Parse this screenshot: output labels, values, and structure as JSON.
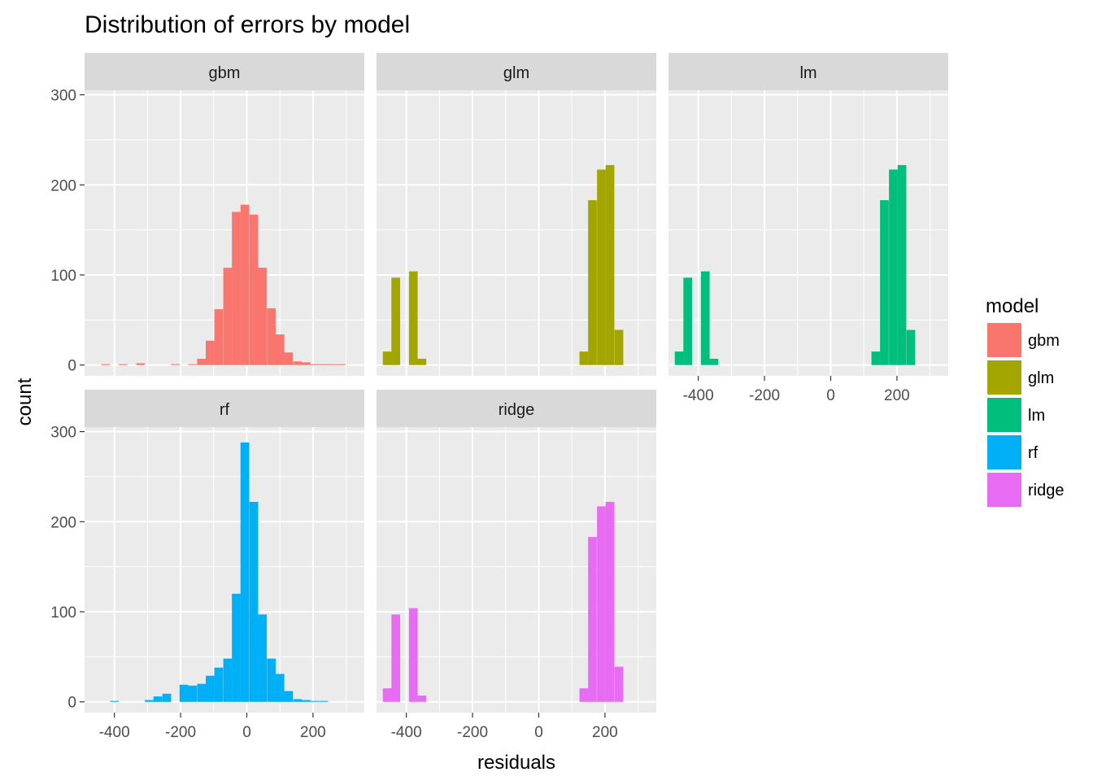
{
  "chart_data": {
    "type": "bar",
    "subtype": "faceted-histogram",
    "title": "Distribution of errors by model",
    "xlabel": "residuals",
    "ylabel": "count",
    "xlim": [
      -490,
      355
    ],
    "ylim": [
      -12,
      305
    ],
    "bin_width": 26.3,
    "x_ticks": [
      -400,
      -200,
      0,
      200
    ],
    "y_ticks": [
      0,
      100,
      200,
      300
    ],
    "grid": true,
    "legend": {
      "title": "model",
      "position": "right",
      "entries": [
        {
          "label": "gbm",
          "color": "#F8766D"
        },
        {
          "label": "glm",
          "color": "#A3A500"
        },
        {
          "label": "lm",
          "color": "#00BF7D"
        },
        {
          "label": "rf",
          "color": "#00B0F6"
        },
        {
          "label": "ridge",
          "color": "#E76BF3"
        }
      ]
    },
    "panels": [
      {
        "label": "gbm",
        "color": "#F8766D",
        "show_x_axis": false,
        "bins": [
          {
            "x0": -440,
            "count": 1
          },
          {
            "x0": -387,
            "count": 1
          },
          {
            "x0": -334,
            "count": 2
          },
          {
            "x0": -229,
            "count": 1
          },
          {
            "x0": -177,
            "count": 1
          },
          {
            "x0": -150,
            "count": 7
          },
          {
            "x0": -124,
            "count": 27
          },
          {
            "x0": -98,
            "count": 62
          },
          {
            "x0": -71,
            "count": 108
          },
          {
            "x0": -45,
            "count": 170
          },
          {
            "x0": -19,
            "count": 178
          },
          {
            "x0": 8,
            "count": 167
          },
          {
            "x0": 34,
            "count": 108
          },
          {
            "x0": 61,
            "count": 63
          },
          {
            "x0": 87,
            "count": 34
          },
          {
            "x0": 113,
            "count": 14
          },
          {
            "x0": 140,
            "count": 4
          },
          {
            "x0": 166,
            "count": 3
          },
          {
            "x0": 192,
            "count": 1
          },
          {
            "x0": 219,
            "count": 1
          },
          {
            "x0": 245,
            "count": 1
          },
          {
            "x0": 272,
            "count": 1
          }
        ]
      },
      {
        "label": "glm",
        "color": "#A3A500",
        "show_x_axis": false,
        "bins": [
          {
            "x0": -471,
            "count": 15
          },
          {
            "x0": -445,
            "count": 97
          },
          {
            "x0": -392,
            "count": 104
          },
          {
            "x0": -366,
            "count": 7
          },
          {
            "x0": 123,
            "count": 15
          },
          {
            "x0": 149,
            "count": 183
          },
          {
            "x0": 176,
            "count": 217
          },
          {
            "x0": 202,
            "count": 222
          },
          {
            "x0": 229,
            "count": 39
          }
        ]
      },
      {
        "label": "lm",
        "color": "#00BF7D",
        "show_x_axis": true,
        "bins": [
          {
            "x0": -471,
            "count": 15
          },
          {
            "x0": -445,
            "count": 97
          },
          {
            "x0": -392,
            "count": 104
          },
          {
            "x0": -366,
            "count": 7
          },
          {
            "x0": 123,
            "count": 15
          },
          {
            "x0": 149,
            "count": 183
          },
          {
            "x0": 176,
            "count": 217
          },
          {
            "x0": 202,
            "count": 222
          },
          {
            "x0": 229,
            "count": 39
          }
        ]
      },
      {
        "label": "rf",
        "color": "#00B0F6",
        "show_x_axis": true,
        "bins": [
          {
            "x0": -413,
            "count": 1
          },
          {
            "x0": -308,
            "count": 2
          },
          {
            "x0": -282,
            "count": 6
          },
          {
            "x0": -255,
            "count": 9
          },
          {
            "x0": -203,
            "count": 19
          },
          {
            "x0": -177,
            "count": 18
          },
          {
            "x0": -150,
            "count": 20
          },
          {
            "x0": -124,
            "count": 29
          },
          {
            "x0": -98,
            "count": 38
          },
          {
            "x0": -71,
            "count": 48
          },
          {
            "x0": -45,
            "count": 120
          },
          {
            "x0": -19,
            "count": 288
          },
          {
            "x0": 8,
            "count": 222
          },
          {
            "x0": 34,
            "count": 97
          },
          {
            "x0": 61,
            "count": 48
          },
          {
            "x0": 87,
            "count": 31
          },
          {
            "x0": 113,
            "count": 12
          },
          {
            "x0": 140,
            "count": 3
          },
          {
            "x0": 166,
            "count": 2
          },
          {
            "x0": 192,
            "count": 1
          },
          {
            "x0": 219,
            "count": 1
          }
        ]
      },
      {
        "label": "ridge",
        "color": "#E76BF3",
        "show_x_axis": true,
        "bins": [
          {
            "x0": -471,
            "count": 15
          },
          {
            "x0": -445,
            "count": 97
          },
          {
            "x0": -392,
            "count": 104
          },
          {
            "x0": -366,
            "count": 7
          },
          {
            "x0": 123,
            "count": 15
          },
          {
            "x0": 149,
            "count": 183
          },
          {
            "x0": 176,
            "count": 217
          },
          {
            "x0": 202,
            "count": 222
          },
          {
            "x0": 229,
            "count": 39
          }
        ]
      }
    ]
  }
}
